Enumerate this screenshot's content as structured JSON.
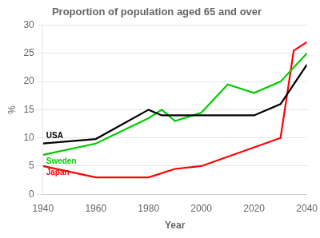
{
  "chart_data": {
    "type": "line",
    "title": "Proportion of population aged 65 and over",
    "x_label": "Year",
    "y_label": "%",
    "xlim": [
      1940,
      2040
    ],
    "ylim": [
      0,
      30
    ],
    "xticks": [
      1940,
      1960,
      1980,
      2000,
      2020,
      2040
    ],
    "yticks": [
      0,
      5,
      10,
      15,
      20,
      25,
      30
    ],
    "grid": "y",
    "series": [
      {
        "name": "USA",
        "color": "#000000",
        "x": [
          1940,
          1960,
          1980,
          1985,
          2000,
          2020,
          2030,
          2040
        ],
        "values": [
          9.0,
          9.8,
          15.0,
          14.0,
          14.0,
          14.0,
          16.0,
          23.0
        ]
      },
      {
        "name": "Sweden",
        "color": "#00cc00",
        "x": [
          1940,
          1960,
          1980,
          1985,
          1990,
          2000,
          2010,
          2020,
          2030,
          2040
        ],
        "values": [
          7.0,
          9.0,
          13.5,
          15.0,
          13.0,
          14.5,
          19.5,
          18.0,
          20.0,
          25.0
        ]
      },
      {
        "name": "Japan",
        "color": "#ff0000",
        "x": [
          1940,
          1960,
          1980,
          1990,
          2000,
          2030,
          2035,
          2040
        ],
        "values": [
          5.0,
          3.0,
          3.0,
          4.5,
          5.0,
          10.0,
          25.5,
          27.0
        ]
      }
    ]
  }
}
